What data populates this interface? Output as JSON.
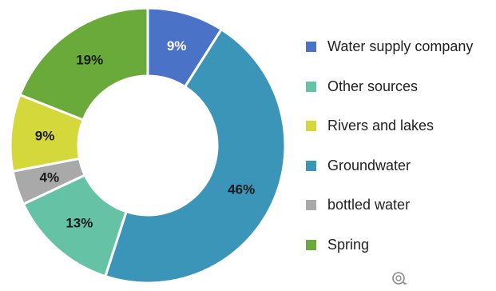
{
  "chart_data": {
    "type": "pie",
    "donut": true,
    "title": "",
    "legend_position": "right",
    "slices": [
      {
        "label": "Water supply company",
        "value": 9,
        "display": "9%",
        "color": "#4a72c6",
        "text_color": "#ffffff"
      },
      {
        "label": "Groundwater",
        "value": 46,
        "display": "46%",
        "color": "#3a95b8",
        "text_color": "#1a1a1a"
      },
      {
        "label": "Other sources",
        "value": 13,
        "display": "13%",
        "color": "#66c2a5",
        "text_color": "#1a1a1a"
      },
      {
        "label": "bottled water",
        "value": 4,
        "display": "4%",
        "color": "#a9a9a9",
        "text_color": "#1a1a1a"
      },
      {
        "label": "Rivers and lakes",
        "value": 9,
        "display": "9%",
        "color": "#d5d83a",
        "text_color": "#1a1a1a"
      },
      {
        "label": "Spring",
        "value": 19,
        "display": "19%",
        "color": "#6aaa3a",
        "text_color": "#1a1a1a"
      }
    ],
    "legend": [
      {
        "label": "Water supply company",
        "color": "#4a72c6"
      },
      {
        "label": "Other sources",
        "color": "#66c2a5"
      },
      {
        "label": "Rivers and lakes",
        "color": "#d5d83a"
      },
      {
        "label": "Groundwater",
        "color": "#3a95b8"
      },
      {
        "label": "bottled water",
        "color": "#a9a9a9"
      },
      {
        "label": "Spring",
        "color": "#6aaa3a"
      }
    ]
  },
  "watermark_icon": "watermark-logo-icon"
}
